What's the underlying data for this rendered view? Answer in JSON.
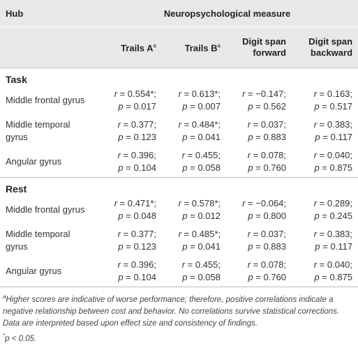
{
  "header": {
    "hub": "Hub",
    "measure": "Neuropsychological measure"
  },
  "columns": [
    {
      "label": "Trails A",
      "note": "a"
    },
    {
      "label": "Trails B",
      "note": "a"
    },
    {
      "label": "Digit span forward"
    },
    {
      "label": "Digit span backward"
    }
  ],
  "sections": [
    {
      "title": "Task",
      "rows": [
        {
          "hub": "Middle frontal gyrus",
          "cells": [
            [
              "r = 0.554*;",
              "p = 0.017"
            ],
            [
              "r = 0.613*;",
              "p = 0.007"
            ],
            [
              "r = −0.147;",
              "p = 0.562"
            ],
            [
              "r = 0.163;",
              "p = 0.517"
            ]
          ]
        },
        {
          "hub": "Middle temporal gyrus",
          "cells": [
            [
              "r = 0.377;",
              "p = 0.123"
            ],
            [
              "r = 0.484*;",
              "p = 0.041"
            ],
            [
              "r = 0.037;",
              "p = 0.883"
            ],
            [
              "r = 0.383;",
              "p = 0.117"
            ]
          ]
        },
        {
          "hub": "Angular gyrus",
          "cells": [
            [
              "r = 0.396;",
              "p = 0.104"
            ],
            [
              "r = 0.455;",
              "p = 0.058"
            ],
            [
              "r = 0.078;",
              "p = 0.760"
            ],
            [
              "r = 0.040;",
              "p = 0.875"
            ]
          ]
        }
      ]
    },
    {
      "title": "Rest",
      "rows": [
        {
          "hub": "Middle frontal gyrus",
          "cells": [
            [
              "r = 0.471*;",
              "p = 0.048"
            ],
            [
              "r = 0.578*;",
              "p = 0.012"
            ],
            [
              "r = −0.064;",
              "p = 0.800"
            ],
            [
              "r = 0.289;",
              "p = 0.245"
            ]
          ]
        },
        {
          "hub": "Middle temporal gyrus",
          "cells": [
            [
              "r = 0.377;",
              "p = 0.123"
            ],
            [
              "r = 0.485*;",
              "p = 0.041"
            ],
            [
              "r = 0.037;",
              "p = 0.883"
            ],
            [
              "r = 0.383;",
              "p = 0.117"
            ]
          ]
        },
        {
          "hub": "Angular gyrus",
          "cells": [
            [
              "r = 0.396;",
              "p = 0.104"
            ],
            [
              "r = 0.455;",
              "p = 0.058"
            ],
            [
              "r = 0.078;",
              "p = 0.760"
            ],
            [
              "r = 0.040;",
              "p = 0.875"
            ]
          ]
        }
      ]
    }
  ],
  "footnotes": [
    {
      "marker": "a",
      "text": "Higher scores are indicative of worse performance; therefore, positive correlations indicate a negative relationship between cost and behavior. No correlations survive statistical corrections. Data are interpreted based upon effect size and consistency of findings."
    },
    {
      "marker": "*",
      "text": "p < 0.05."
    }
  ]
}
